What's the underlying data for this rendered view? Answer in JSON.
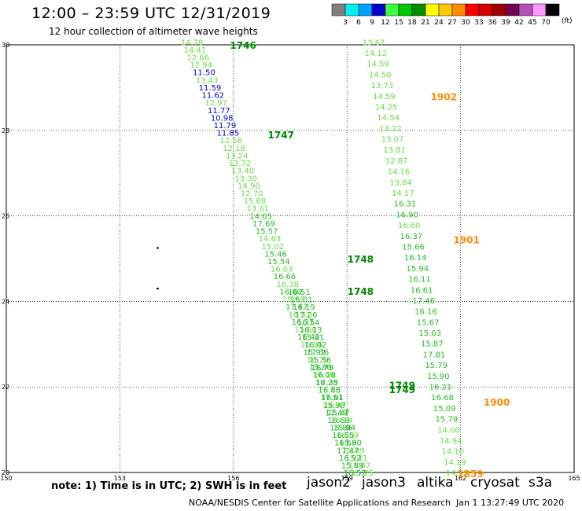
{
  "header": {
    "title": "12:00 – 23:59 UTC 12/31/2019",
    "subtitle": "12 hour collection of altimeter wave heights"
  },
  "legend": {
    "unit": "(ft)",
    "bins": [
      {
        "label": "3",
        "color": "#808080"
      },
      {
        "label": "6",
        "color": "#00f0f0"
      },
      {
        "label": "9",
        "color": "#00a0ff"
      },
      {
        "label": "12",
        "color": "#0000c8"
      },
      {
        "label": "15",
        "color": "#40ff40"
      },
      {
        "label": "18",
        "color": "#00c800"
      },
      {
        "label": "21",
        "color": "#008c00"
      },
      {
        "label": "24",
        "color": "#ffff00"
      },
      {
        "label": "27",
        "color": "#ffc800"
      },
      {
        "label": "30",
        "color": "#ff8c00"
      },
      {
        "label": "33",
        "color": "#ff0000"
      },
      {
        "label": "36",
        "color": "#d20000"
      },
      {
        "label": "39",
        "color": "#a00000"
      },
      {
        "label": "42",
        "color": "#780050"
      },
      {
        "label": "45",
        "color": "#b450b4"
      },
      {
        "label": "70",
        "color": "#ff96ff"
      },
      {
        "label": "",
        "color": "#000000"
      }
    ]
  },
  "map": {
    "lon_range": [
      150,
      165
    ],
    "lat_range": [
      20,
      30
    ],
    "lon_ticks": [
      "150",
      "153",
      "156",
      "159",
      "162",
      "165"
    ],
    "lat_ticks": [
      "20",
      "22",
      "24",
      "26",
      "28",
      "30"
    ],
    "grid_lons": [
      153,
      156,
      159,
      162
    ],
    "grid_lats": [
      22,
      24,
      26,
      28
    ],
    "colors": {
      "light": "#66dd44",
      "medium": "#22bb22",
      "dark": "#008800",
      "blue": "#0000c8",
      "orange": "#ff8c00"
    },
    "tracks": [
      {
        "name": "track-a",
        "start": [
          154.9,
          30.05
        ],
        "end": [
          159.4,
          19.98
        ],
        "color": "light",
        "labels": [
          "14.78",
          "14.41",
          "12.66",
          "12.94",
          "11.50",
          "13.43",
          "11.59",
          "11.62",
          "12.97",
          "11.77",
          "10.98",
          "11.79",
          "11.85",
          "12.56",
          "12.18",
          "13.24",
          "13.72",
          "13.40",
          "13.30",
          "14.90",
          "12.70",
          "15.68",
          "13.61",
          "14.05",
          "17.69",
          "15.57",
          "14.63",
          "15.02",
          "15.46",
          "15.54",
          "16.03",
          "16.66",
          "16.38",
          "16.00",
          "15.65",
          "17.47",
          "16.31",
          "16.37",
          "15.60",
          "16.42",
          "16.36",
          "15.92",
          "16.79",
          "15.80",
          "16.66",
          "16.28",
          "16.43",
          "16.61",
          "16.47",
          "15.87",
          "16.19",
          "15.94",
          "16.59",
          "15.80",
          "15.89",
          "15.41",
          "15.07",
          "15.25"
        ],
        "blue_idx": [
          4,
          6,
          7,
          9,
          10,
          11,
          12
        ],
        "dark_idx": [
          23,
          24,
          25,
          28,
          29,
          31,
          33,
          35,
          37,
          39,
          41,
          43,
          45,
          47,
          49,
          51,
          53
        ]
      },
      {
        "name": "track-b",
        "start": [
          155.7,
          30.05
        ],
        "end": [
          159.2,
          19.98
        ],
        "color": "medium",
        "labels": [
          "16.51",
          "16.01",
          "16.19",
          "17.26",
          "16.54",
          "16.13",
          "15.81",
          "16.02",
          "17.36",
          "15.56",
          "16.79",
          "16.28",
          "17.35",
          "16.86",
          "17.51",
          "15.98",
          "17.49",
          "16.69",
          "15.86",
          "16.55",
          "16.59",
          "17.47",
          "16.92",
          "15.89",
          "16.57"
        ],
        "start_frac": 0.58
      },
      {
        "name": "track-c",
        "start": [
          159.7,
          30.05
        ],
        "end": [
          161.9,
          19.98
        ],
        "color": "light",
        "labels": [
          "13.67",
          "14.12",
          "14.59",
          "14.50",
          "13.73",
          "14.59",
          "14.25",
          "14.54",
          "13.22",
          "13.07",
          "13.81",
          "12.87",
          "14.16",
          "13.84",
          "14.17",
          "16.31",
          "16.90",
          "16.60",
          "16.37",
          "15.66",
          "16.14",
          "15.94",
          "16.11",
          "16.61",
          "17.46",
          "16.16",
          "15.67",
          "15.03",
          "15.87",
          "17.81",
          "15.79",
          "15.90",
          "16.21",
          "16.68",
          "15.09",
          "15.79",
          "14.00",
          "14.94",
          "14.10",
          "14.19",
          "14.39"
        ],
        "dark_idx": [
          15,
          16,
          18,
          19,
          20,
          21,
          22,
          23,
          24,
          25,
          26,
          27,
          28,
          29,
          30,
          31,
          32,
          33,
          34,
          35
        ]
      }
    ],
    "times": [
      {
        "text": "1746",
        "lon": 156.2,
        "lat": 30.0,
        "color": "dark"
      },
      {
        "text": "1747",
        "lon": 157.2,
        "lat": 27.9,
        "color": "dark"
      },
      {
        "text": "1748",
        "lon": 159.3,
        "lat": 25.0,
        "color": "dark"
      },
      {
        "text": "1748",
        "lon": 159.3,
        "lat": 24.25,
        "color": "dark"
      },
      {
        "text": "1749",
        "lon": 160.4,
        "lat": 22.05,
        "color": "dark"
      },
      {
        "text": "1749",
        "lon": 160.4,
        "lat": 21.95,
        "color": "dark"
      },
      {
        "text": "1902",
        "lon": 161.5,
        "lat": 28.8,
        "color": "orange"
      },
      {
        "text": "1901",
        "lon": 162.1,
        "lat": 25.45,
        "color": "orange"
      },
      {
        "text": "1900",
        "lon": 162.9,
        "lat": 21.65,
        "color": "orange"
      },
      {
        "text": "1859",
        "lon": 162.2,
        "lat": 19.98,
        "color": "orange"
      }
    ],
    "points": [
      {
        "lon": 154.0,
        "lat": 25.25
      },
      {
        "lon": 154.0,
        "lat": 24.3
      }
    ]
  },
  "footer": {
    "note": "note:  1) Time is in UTC;  2) SWH is in feet",
    "satellites": [
      {
        "name": "jason2",
        "color": "#1010ff"
      },
      {
        "name": "jason3",
        "color": "#008c00"
      },
      {
        "name": "altika",
        "color": "#ff8c00"
      },
      {
        "name": "cryosat",
        "color": "#ff0000"
      },
      {
        "name": "s3a",
        "color": "#a00000"
      }
    ],
    "credit": "NOAA/NESDIS Center for Satellite Applications and Research",
    "timestamp": "Jan  1 13:27:49 UTC 2020"
  }
}
